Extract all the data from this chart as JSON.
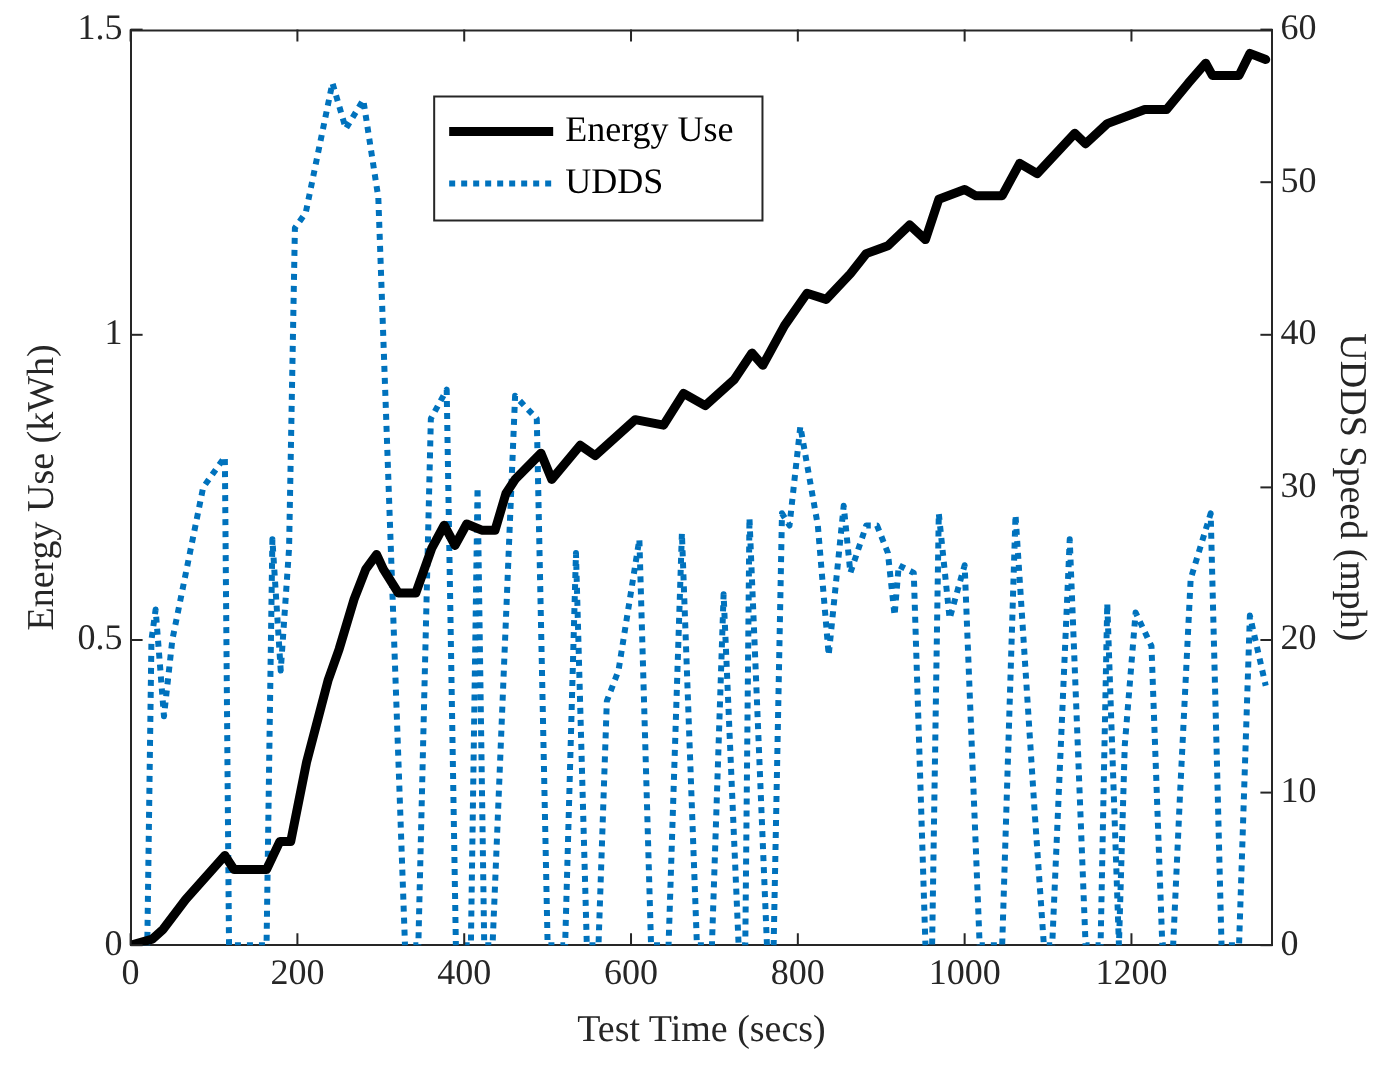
{
  "chart_data": {
    "type": "line",
    "xlabel": "Test Time (secs)",
    "ylabel": "Energy Use (kWh)",
    "y2label": "UDDS Speed (mph)",
    "xlim": [
      0,
      1369
    ],
    "xticks": [
      0,
      200,
      400,
      600,
      800,
      1000,
      1200
    ],
    "ylim": [
      0,
      1.5
    ],
    "yticks": [
      0,
      0.5,
      1,
      1.5
    ],
    "y2lim": [
      0,
      60
    ],
    "y2ticks": [
      0,
      10,
      20,
      30,
      40,
      50,
      60
    ],
    "legend": "top",
    "grid": false,
    "marker": "none",
    "series": [
      {
        "name": "Energy Use",
        "color": "#000000",
        "line_style": "solid",
        "x": [
          0,
          26,
          39,
          66,
          113,
          124,
          163,
          179,
          192,
          211,
          237,
          250,
          268,
          282,
          295,
          303,
          321,
          342,
          361,
          376,
          389,
          403,
          421,
          437,
          450,
          461,
          492,
          505,
          539,
          557,
          605,
          639,
          663,
          689,
          724,
          745,
          758,
          784,
          811,
          834,
          863,
          882,
          908,
          934,
          953,
          969,
          1000,
          1013,
          1045,
          1066,
          1087,
          1132,
          1145,
          1171,
          1216,
          1242,
          1268,
          1289,
          1297,
          1329,
          1342,
          1361
        ],
        "values": [
          0,
          0.01,
          0.026,
          0.075,
          0.147,
          0.124,
          0.124,
          0.17,
          0.17,
          0.3,
          0.435,
          0.485,
          0.567,
          0.616,
          0.64,
          0.616,
          0.577,
          0.577,
          0.65,
          0.688,
          0.655,
          0.69,
          0.68,
          0.68,
          0.74,
          0.763,
          0.806,
          0.763,
          0.819,
          0.802,
          0.861,
          0.852,
          0.904,
          0.884,
          0.927,
          0.97,
          0.95,
          1.015,
          1.068,
          1.058,
          1.1,
          1.133,
          1.146,
          1.18,
          1.156,
          1.222,
          1.238,
          1.228,
          1.228,
          1.281,
          1.264,
          1.33,
          1.313,
          1.346,
          1.369,
          1.369,
          1.412,
          1.445,
          1.425,
          1.425,
          1.461,
          1.451
        ]
      },
      {
        "name": "UDDS",
        "color": "#0072bd",
        "line_style": "dotted",
        "axis": "y2",
        "x": [
          0,
          20,
          25,
          30,
          40,
          50,
          87,
          113,
          118,
          163,
          170,
          180,
          190,
          197,
          210,
          242,
          258,
          279,
          297,
          329,
          345,
          360,
          379,
          390,
          408,
          416,
          424,
          434,
          461,
          487,
          500,
          521,
          534,
          547,
          561,
          571,
          585,
          610,
          624,
          645,
          661,
          679,
          697,
          711,
          729,
          737,
          742,
          763,
          771,
          781,
          790,
          803,
          824,
          837,
          855,
          863,
          882,
          895,
          908,
          916,
          921,
          939,
          953,
          961,
          969,
          982,
          1000,
          1018,
          1045,
          1061,
          1084,
          1095,
          1105,
          1126,
          1145,
          1163,
          1171,
          1185,
          1192,
          1205,
          1224,
          1237,
          1250,
          1258,
          1271,
          1295,
          1308,
          1329,
          1342,
          1361
        ],
        "values": [
          0,
          0,
          20,
          22,
          15,
          20,
          30,
          32,
          0,
          0,
          26.6,
          18,
          26,
          47,
          48,
          56.5,
          53.5,
          55.4,
          49,
          0,
          0,
          34.5,
          36.4,
          0,
          0,
          30,
          0,
          0,
          36,
          34.5,
          0,
          0,
          25.7,
          0,
          0,
          16,
          18,
          26.6,
          0,
          0,
          27,
          0,
          0,
          23,
          0,
          0,
          28,
          0,
          0,
          28.3,
          27.5,
          34,
          27.5,
          19,
          28.8,
          24.4,
          27.5,
          27.5,
          25.7,
          21.6,
          24.9,
          24.4,
          0,
          0,
          28.3,
          21.4,
          24.9,
          0,
          0,
          28.2,
          8.7,
          0,
          0,
          26.6,
          0,
          0,
          22.4,
          0,
          13.1,
          21.8,
          19.6,
          0,
          0,
          9.6,
          24,
          28.3,
          0,
          0,
          21.6,
          17
        ]
      }
    ]
  }
}
